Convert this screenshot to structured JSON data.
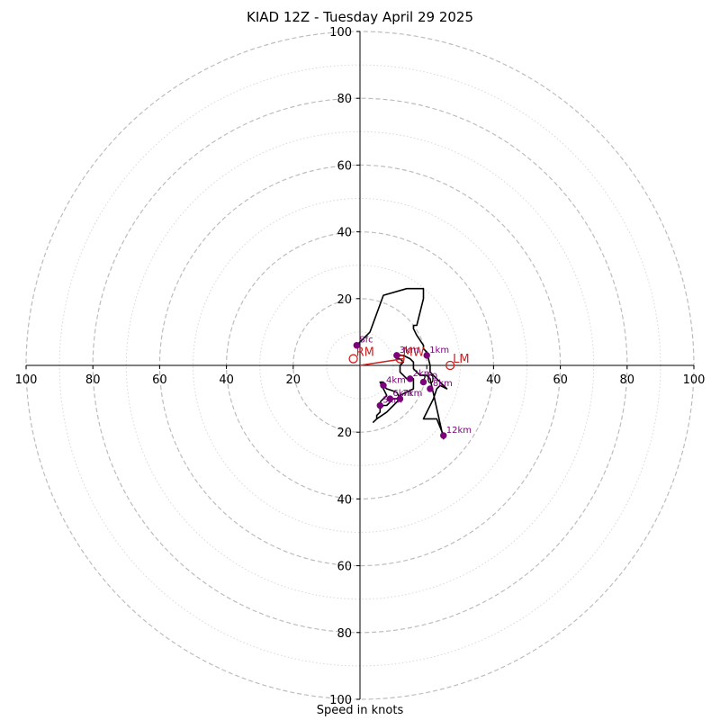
{
  "chart_data": {
    "type": "hodograph",
    "title": "KIAD 12Z - Tuesday April 29 2025",
    "xlabel": "Speed in knots",
    "ylabel": "",
    "range": [
      -100,
      100
    ],
    "ring_major": [
      20,
      40,
      60,
      80,
      100
    ],
    "ring_minor": [
      10,
      30,
      50,
      70,
      90
    ],
    "tick_labels": [
      {
        "text": "100",
        "value": -100
      },
      {
        "text": "80",
        "value": -80
      },
      {
        "text": "60",
        "value": -60
      },
      {
        "text": "40",
        "value": -40
      },
      {
        "text": "20",
        "value": -20
      },
      {
        "text": "20",
        "value": 20
      },
      {
        "text": "40",
        "value": 40
      },
      {
        "text": "60",
        "value": 60
      },
      {
        "text": "80",
        "value": 80
      },
      {
        "text": "100",
        "value": 100
      }
    ],
    "profile_uv": [
      [
        -1,
        6
      ],
      [
        3,
        10
      ],
      [
        7,
        21
      ],
      [
        14,
        23
      ],
      [
        19,
        23
      ],
      [
        19,
        20
      ],
      [
        17,
        12
      ],
      [
        16,
        12
      ],
      [
        16,
        11
      ],
      [
        17,
        9
      ],
      [
        19,
        6
      ],
      [
        19,
        5
      ],
      [
        20,
        4
      ],
      [
        21,
        0
      ],
      [
        21,
        -2
      ],
      [
        24,
        -5
      ],
      [
        26,
        -7
      ],
      [
        24,
        -6
      ],
      [
        23,
        -7
      ],
      [
        22,
        -10
      ],
      [
        19,
        -16
      ],
      [
        23,
        -16
      ],
      [
        25,
        -21
      ],
      [
        25,
        -22
      ],
      [
        21,
        -4
      ],
      [
        20,
        -3
      ],
      [
        18,
        -3
      ],
      [
        17,
        -2
      ],
      [
        16,
        -1
      ],
      [
        16,
        1
      ],
      [
        15,
        2
      ],
      [
        13,
        3
      ],
      [
        11,
        3
      ],
      [
        11,
        2
      ],
      [
        12,
        2
      ],
      [
        13,
        1
      ],
      [
        12,
        0
      ],
      [
        12,
        -2
      ],
      [
        13,
        -3
      ],
      [
        14,
        -4
      ],
      [
        15,
        -4
      ],
      [
        16,
        -4
      ],
      [
        16,
        -7
      ],
      [
        14,
        -8
      ],
      [
        12,
        -9
      ],
      [
        11,
        -10
      ],
      [
        10,
        -10
      ],
      [
        9,
        -11
      ],
      [
        8,
        -12
      ],
      [
        7,
        -12
      ],
      [
        6,
        -13
      ],
      [
        6,
        -14
      ],
      [
        5,
        -15
      ],
      [
        5,
        -16
      ],
      [
        4,
        -17
      ],
      [
        5,
        -16
      ],
      [
        8,
        -14
      ],
      [
        9,
        -13
      ],
      [
        10,
        -12
      ],
      [
        11,
        -11
      ],
      [
        12,
        -10
      ],
      [
        11,
        -8
      ],
      [
        8,
        -7
      ],
      [
        7,
        -6
      ],
      [
        7,
        -5
      ],
      [
        6,
        -5
      ],
      [
        8,
        -9
      ],
      [
        7,
        -10
      ],
      [
        6,
        -11
      ]
    ],
    "height_markers": [
      {
        "label": "Sfc",
        "u": -1,
        "v": 6
      },
      {
        "label": "1km",
        "u": 20,
        "v": 3
      },
      {
        "label": "2km",
        "u": 15,
        "v": -4
      },
      {
        "label": "3km",
        "u": 11,
        "v": 3
      },
      {
        "label": "4km",
        "u": 7,
        "v": -6
      },
      {
        "label": "6km",
        "u": 9,
        "v": -10
      },
      {
        "label": "7km",
        "u": 12,
        "v": -10
      },
      {
        "label": "8km",
        "u": 21,
        "v": -7
      },
      {
        "label": "10",
        "u": 19,
        "v": -5
      },
      {
        "label": "12km",
        "u": 25,
        "v": -21
      },
      {
        "label": "5km",
        "u": 6,
        "v": -12
      }
    ],
    "storm_motions": [
      {
        "label": "RM",
        "u": -2,
        "v": 2
      },
      {
        "label": "MW",
        "u": 12,
        "v": 2
      },
      {
        "label": "LM",
        "u": 27,
        "v": 0
      }
    ],
    "shear_vector": {
      "from": [
        0,
        0
      ],
      "to": [
        13,
        2
      ]
    },
    "colors": {
      "ring_major": "#bdbdbd",
      "ring_minor": "#d8d8d8",
      "profile": "#000000",
      "markers": "#7b007b",
      "storm_motion": "#cc2222",
      "axes": "#000000"
    }
  }
}
